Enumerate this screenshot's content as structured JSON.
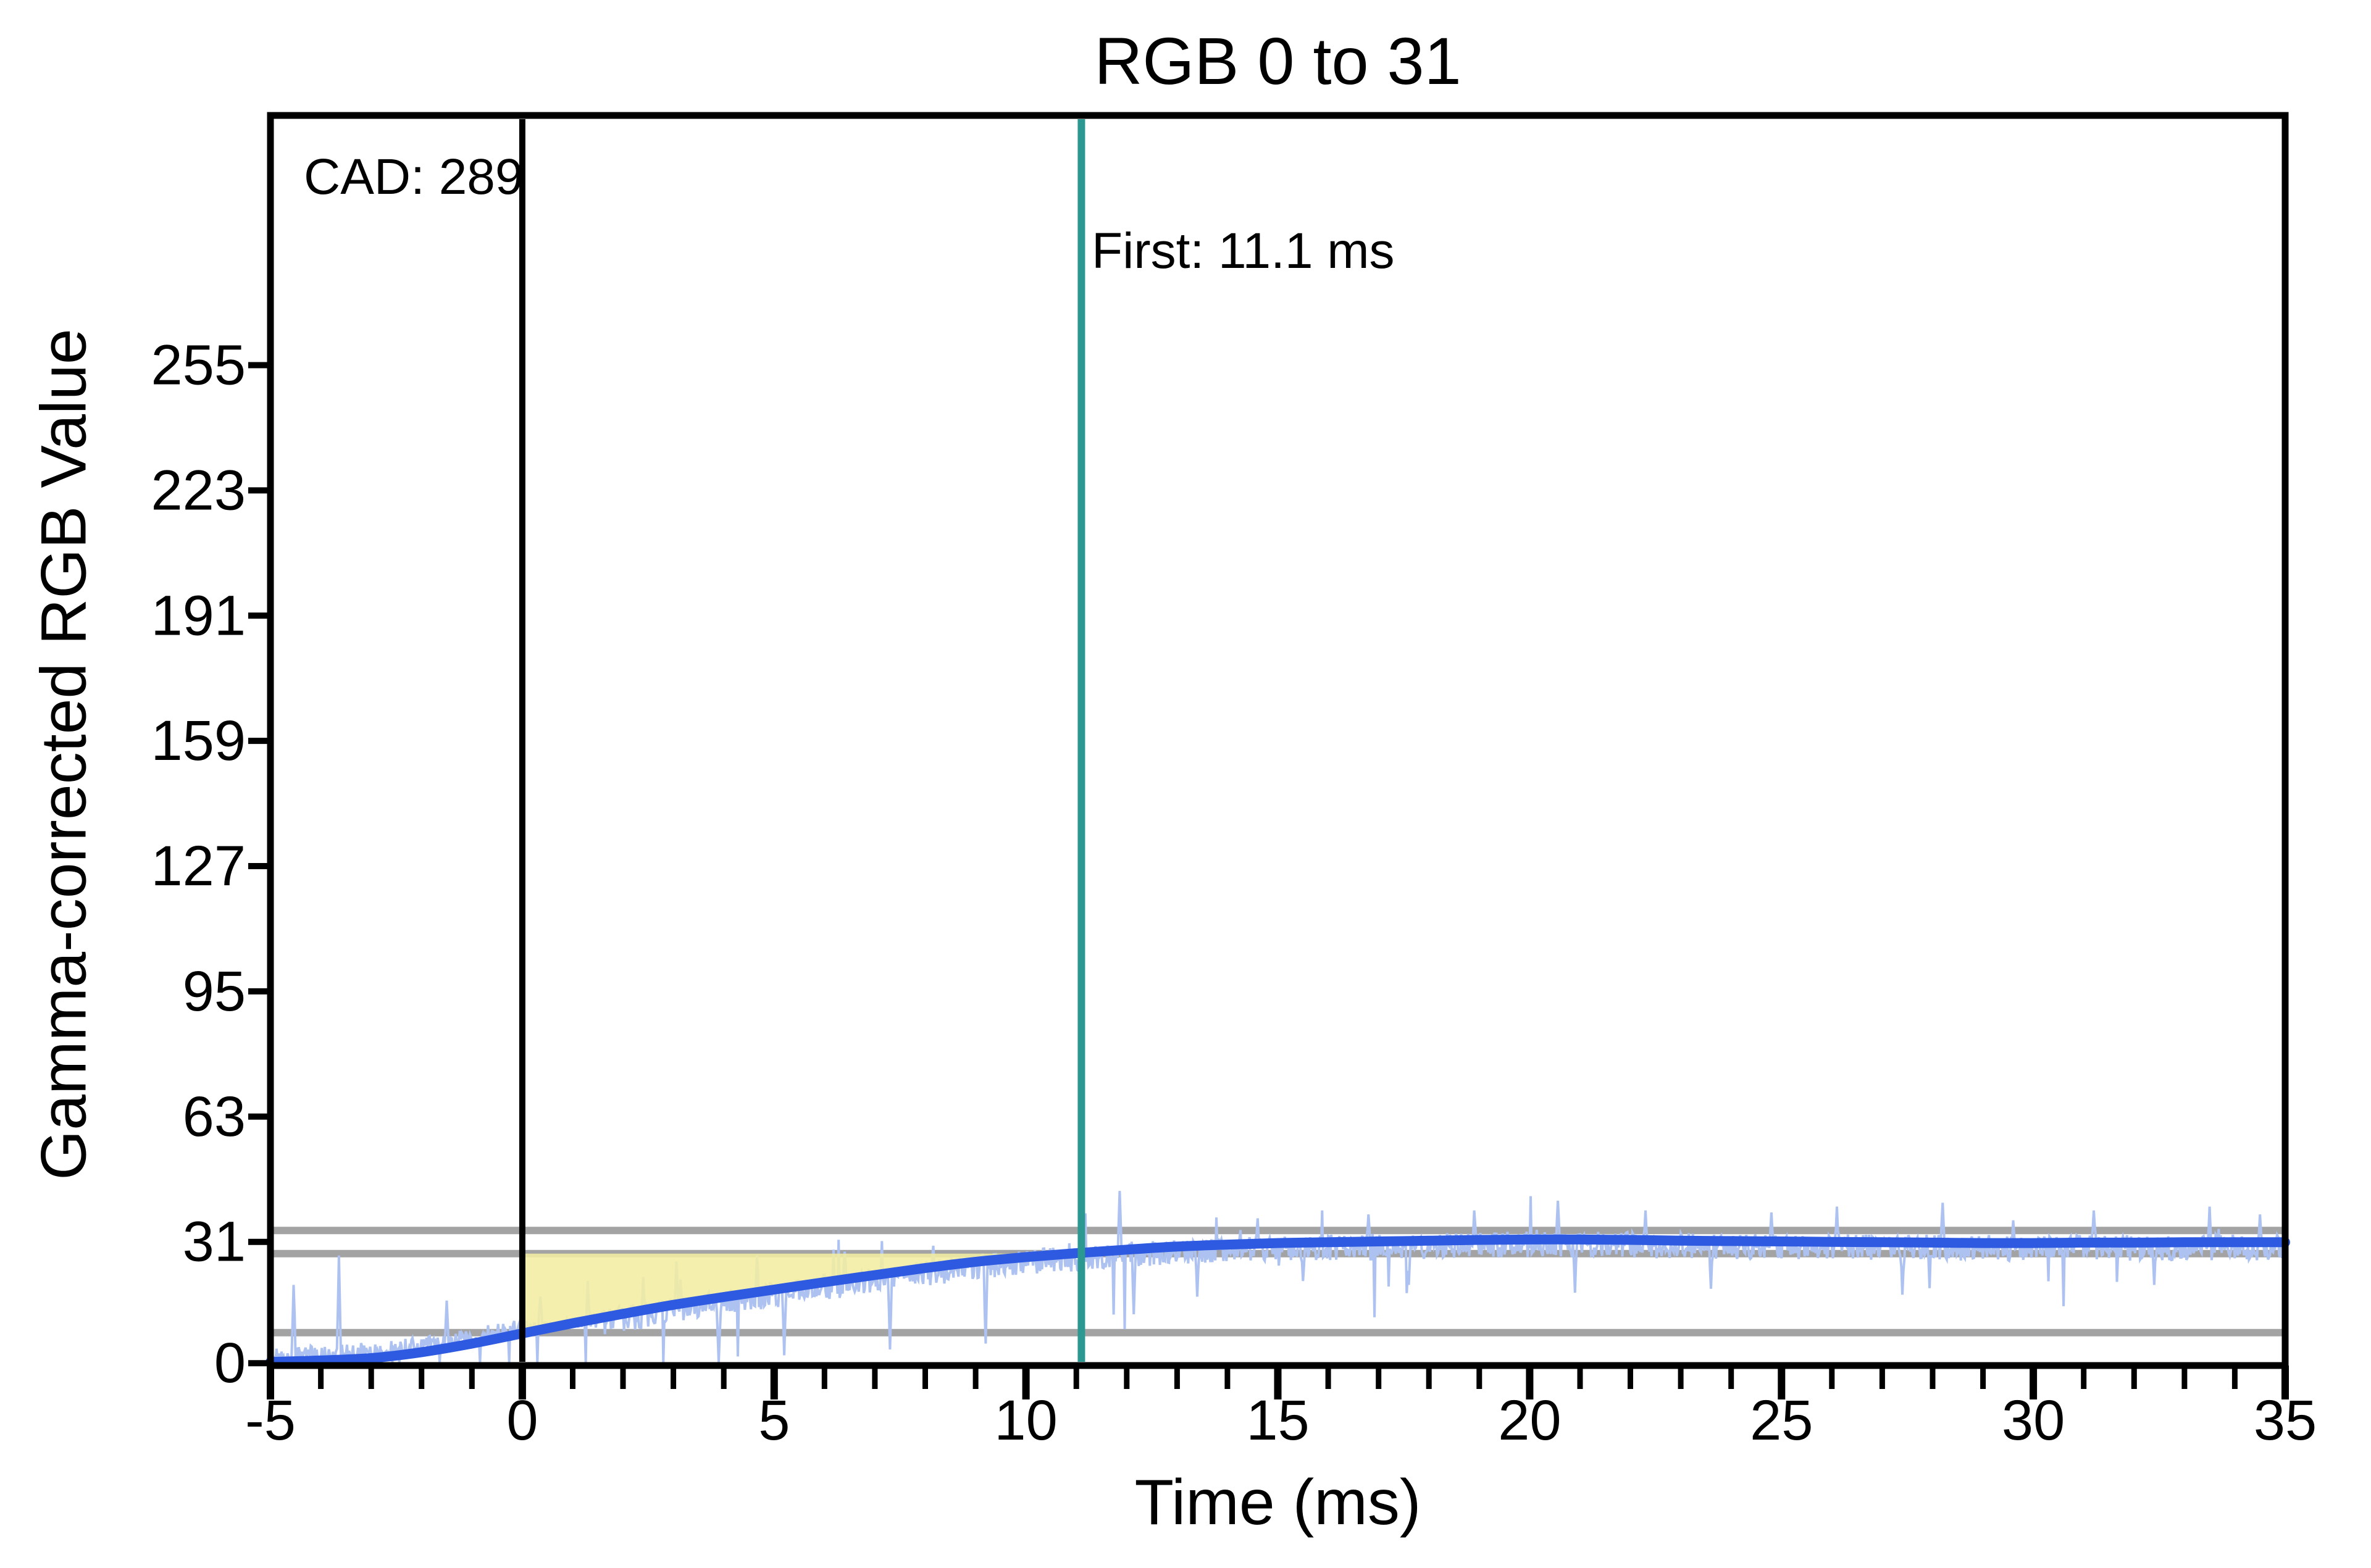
{
  "title": "RGB 0 to 31",
  "annotations": {
    "cad": "CAD: 289",
    "first": "First: 11.1 ms"
  },
  "axes": {
    "x": {
      "label": "Time (ms)",
      "min": -5,
      "max": 35,
      "major_ticks": [
        -5,
        0,
        5,
        10,
        15,
        20,
        25,
        30,
        35
      ],
      "minor_step_ms": 1
    },
    "y": {
      "label": "Gamma-corrected RGB Value",
      "ticks": [
        0,
        31,
        63,
        95,
        127,
        159,
        191,
        223,
        255
      ],
      "min": -0.6,
      "max": 318.8
    }
  },
  "colors": {
    "background": "#ffffff",
    "frame": "#000000",
    "smoothed_curve": "#2d5ae0",
    "raw_signal": "#adc2f0",
    "threshold_gray": "#a3a3a3",
    "transition_start_line": "#000000",
    "first_response_line": "#2b9892",
    "response_area_fill": "#f3eda0",
    "text": "#000000"
  },
  "chart_data": {
    "type": "line",
    "title": "RGB 0 to 31",
    "xlabel": "Time (ms)",
    "ylabel": "Gamma-corrected RGB Value",
    "xlim": [
      -5,
      35
    ],
    "ylim": [
      -0.6,
      318.8
    ],
    "grid": false,
    "legend": "none",
    "series": [
      {
        "name": "smoothed-response",
        "color": "#2d5ae0",
        "x": [
          -5,
          -4,
          -3,
          -2,
          -1,
          0,
          1,
          2,
          3,
          4,
          5,
          6,
          7,
          8,
          9,
          10,
          11,
          12,
          13,
          14,
          15,
          16,
          17,
          18,
          19,
          20,
          21,
          22,
          23,
          24,
          25,
          26,
          27,
          28,
          29,
          30,
          31,
          32,
          33,
          34,
          35
        ],
        "values": [
          0.3,
          0.7,
          1.3,
          2.8,
          5.0,
          7.6,
          10.2,
          12.6,
          14.9,
          16.9,
          18.8,
          20.7,
          22.5,
          24.3,
          25.9,
          27.1,
          28.1,
          29.0,
          29.8,
          30.3,
          30.7,
          30.9,
          31.1,
          31.3,
          31.5,
          31.6,
          31.6,
          31.5,
          31.3,
          31.2,
          31.1,
          31.0,
          30.9,
          30.8,
          30.7,
          30.7,
          30.8,
          30.8,
          30.9,
          30.9,
          30.9
        ]
      },
      {
        "name": "raw-signal",
        "color": "#adc2f0",
        "description": "noisy raw photodiode trace forming a band around the smoothed response",
        "band_low": -4.6,
        "band_high": 2.0,
        "sample_step_ms": 0.02,
        "spike_prob_up": 0.008,
        "spike_prob_down": 0.01,
        "spikes": [
          [
            -4.55,
            20.0
          ],
          [
            -3.65,
            27.5
          ],
          [
            -1.5,
            16.0
          ],
          [
            0.35,
            17.0
          ],
          [
            1.3,
            21.0
          ],
          [
            2.4,
            22.0
          ],
          [
            3.05,
            26.0
          ],
          [
            3.9,
            0.2
          ],
          [
            4.65,
            27.5
          ],
          [
            5.2,
            2.0
          ],
          [
            6.4,
            28.5
          ],
          [
            7.3,
            3.5
          ],
          [
            8.15,
            30.0
          ],
          [
            9.2,
            5.0
          ],
          [
            11.85,
            44.0
          ],
          [
            12.15,
            12.5
          ],
          [
            13.4,
            17.0
          ],
          [
            14.6,
            37.0
          ],
          [
            15.5,
            21.0
          ],
          [
            16.8,
            38.0
          ],
          [
            17.6,
            20.0
          ],
          [
            18.9,
            39.0
          ],
          [
            20.55,
            41.5
          ],
          [
            20.9,
            18.0
          ],
          [
            22.3,
            39.0
          ],
          [
            23.6,
            19.0
          ],
          [
            24.8,
            38.5
          ],
          [
            26.1,
            40.0
          ],
          [
            27.4,
            17.5
          ],
          [
            28.2,
            41.0
          ],
          [
            29.6,
            36.5
          ],
          [
            31.2,
            39.0
          ],
          [
            32.4,
            20.0
          ],
          [
            33.5,
            40.0
          ],
          [
            34.5,
            38.0
          ]
        ]
      }
    ],
    "threshold_lines": [
      {
        "name": "upper-tolerance",
        "value": 33.9,
        "color": "#a3a3a3"
      },
      {
        "name": "lower-tolerance",
        "value": 28.0,
        "color": "#a3a3a3"
      },
      {
        "name": "start-threshold",
        "value": 7.8,
        "color": "#a3a3a3"
      }
    ],
    "event_lines": [
      {
        "name": "transition-start",
        "x": 0,
        "color": "#000000",
        "label": "CAD: 289"
      },
      {
        "name": "first-response",
        "x": 11.1,
        "color": "#2b9892",
        "label": "First: 11.1 ms"
      }
    ],
    "shaded_region": {
      "name": "response-area",
      "color": "#f3eda0",
      "opacity": 0.88,
      "from_x": 0,
      "to_x": 11.0,
      "upper_value": 28.0,
      "lower_bound": "smoothed-response curve"
    }
  }
}
